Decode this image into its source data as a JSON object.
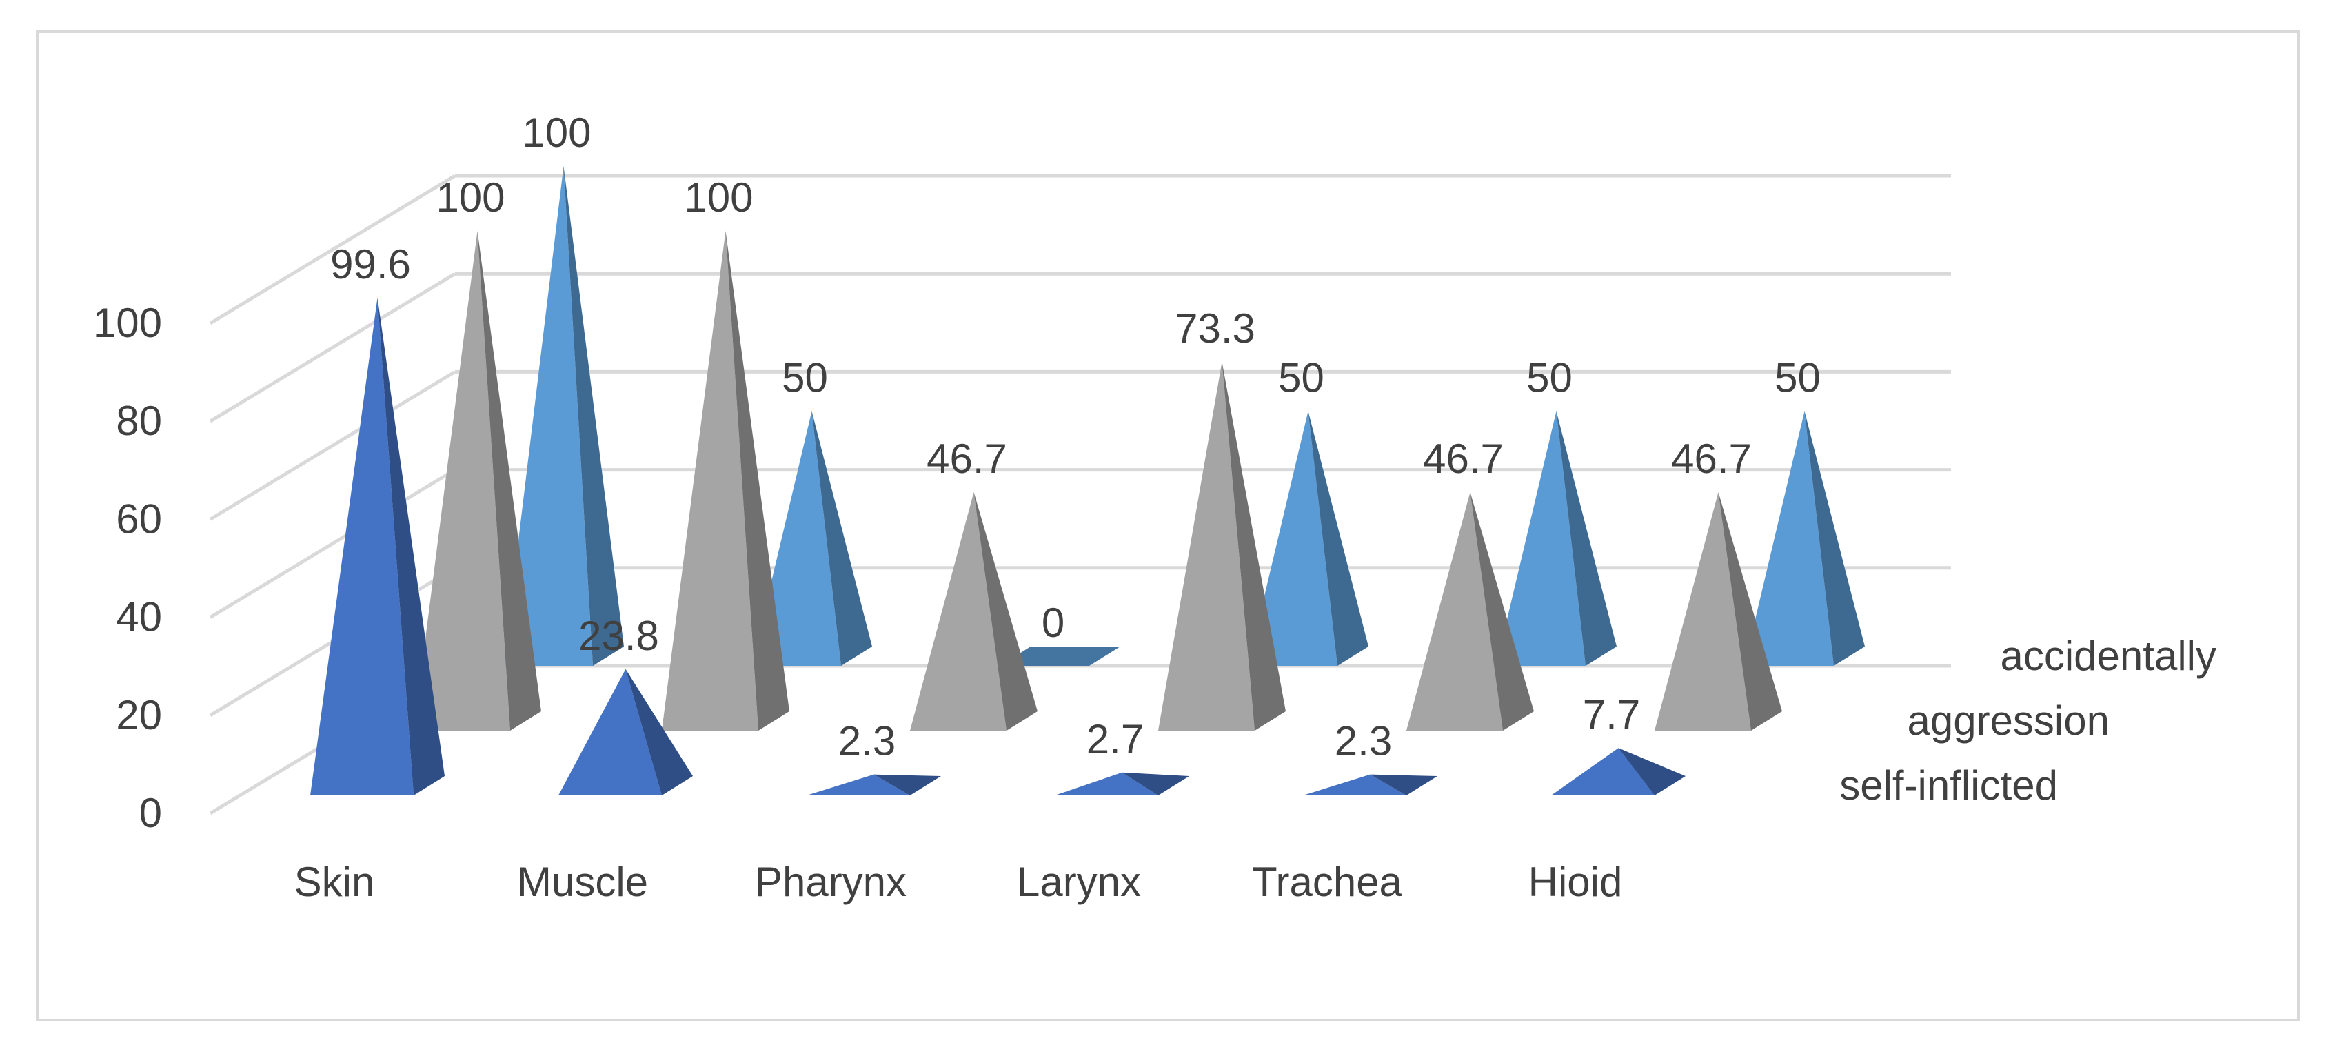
{
  "chart_data": {
    "type": "bar",
    "shape": "pyramid-3d",
    "categories": [
      "Skin",
      "Muscle",
      "Pharynx",
      "Larynx",
      "Trachea",
      "Hioid"
    ],
    "series": [
      {
        "name": "self-inflicted",
        "values": [
          99.6,
          23.8,
          2.3,
          2.7,
          2.3,
          7.7
        ],
        "color": "#4472c4"
      },
      {
        "name": "aggression",
        "values": [
          100,
          100,
          46.7,
          73.3,
          46.7,
          46.7
        ],
        "color": "#a5a5a5"
      },
      {
        "name": "accidentally",
        "values": [
          100,
          50,
          0,
          50,
          50,
          50
        ],
        "color": "#5b9bd5"
      }
    ],
    "y_ticks": [
      "0",
      "20",
      "40",
      "60",
      "80",
      "100"
    ],
    "ylim": [
      0,
      100
    ],
    "grid": true
  }
}
